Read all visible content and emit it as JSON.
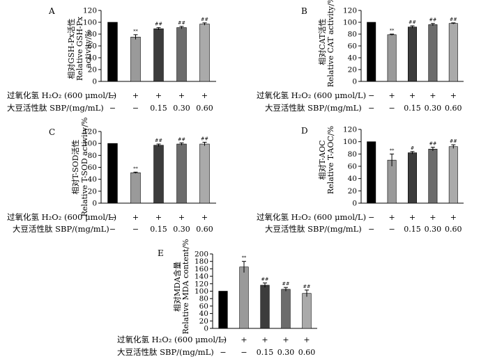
{
  "figure": {
    "row_labels": {
      "h2o2": "过氧化氢 H₂O₂ (600 μmol/L)",
      "sbp": "大豆活性肽 SBP/(mg/mL)"
    },
    "h2o2_signs": [
      "−",
      "+",
      "+",
      "+",
      "+"
    ],
    "sbp_values": [
      "−",
      "−",
      "0.15",
      "0.30",
      "0.60"
    ]
  },
  "chart_data": [
    {
      "panel": "A",
      "type": "bar",
      "ylabel_lines": [
        "相对GSH-Px活性",
        "Relative GSH-Px",
        "activity/%"
      ],
      "yticks": [
        0,
        20,
        40,
        60,
        80,
        100,
        120
      ],
      "ylim": [
        0,
        120
      ],
      "values": [
        100,
        75,
        89,
        91,
        97
      ],
      "errors": [
        0,
        4,
        2,
        2,
        2
      ],
      "significance": [
        "",
        "**",
        "##",
        "##",
        "##"
      ],
      "bar_colors": [
        "#000000",
        "#9a9a9a",
        "#3c3c3c",
        "#6c6c6c",
        "#aaaaaa"
      ]
    },
    {
      "panel": "B",
      "type": "bar",
      "ylabel_lines": [
        "相对CAT活性",
        "Relative CAT activity/%"
      ],
      "yticks": [
        0,
        20,
        40,
        60,
        80,
        100,
        120
      ],
      "ylim": [
        0,
        120
      ],
      "values": [
        100,
        79,
        92,
        96,
        98
      ],
      "errors": [
        0,
        1,
        2,
        2,
        1
      ],
      "significance": [
        "",
        "**",
        "##",
        "##",
        "##"
      ],
      "bar_colors": [
        "#000000",
        "#9a9a9a",
        "#3c3c3c",
        "#6c6c6c",
        "#aaaaaa"
      ]
    },
    {
      "panel": "C",
      "type": "bar",
      "ylabel_lines": [
        "相对T-SOD活性",
        "Relative T-SOD activity/%"
      ],
      "yticks": [
        0,
        20,
        40,
        60,
        80,
        100,
        120
      ],
      "ylim": [
        0,
        120
      ],
      "values": [
        100,
        51,
        97,
        99,
        99
      ],
      "errors": [
        0,
        1,
        2,
        2,
        3
      ],
      "significance": [
        "",
        "**",
        "##",
        "##",
        "##"
      ],
      "bar_colors": [
        "#000000",
        "#9a9a9a",
        "#3c3c3c",
        "#6c6c6c",
        "#aaaaaa"
      ]
    },
    {
      "panel": "D",
      "type": "bar",
      "ylabel_lines": [
        "相对T-AOC",
        "Relative T-AOC/%"
      ],
      "yticks": [
        0,
        20,
        40,
        60,
        80,
        100,
        120
      ],
      "ylim": [
        0,
        120
      ],
      "values": [
        100,
        70,
        82,
        88,
        92
      ],
      "errors": [
        0,
        10,
        2,
        3,
        3
      ],
      "significance": [
        "",
        "**",
        "#",
        "##",
        "##"
      ],
      "bar_colors": [
        "#000000",
        "#9a9a9a",
        "#3c3c3c",
        "#6c6c6c",
        "#aaaaaa"
      ]
    },
    {
      "panel": "E",
      "type": "bar",
      "ylabel_lines": [
        "相对MDA含量",
        "Relative MDA content/%"
      ],
      "yticks": [
        0,
        20,
        40,
        60,
        80,
        100,
        120,
        140,
        160,
        180,
        200
      ],
      "ylim": [
        0,
        200
      ],
      "values": [
        100,
        165,
        116,
        105,
        94
      ],
      "errors": [
        0,
        15,
        6,
        5,
        9
      ],
      "significance": [
        "",
        "**",
        "##",
        "##",
        "##"
      ],
      "bar_colors": [
        "#000000",
        "#9a9a9a",
        "#3c3c3c",
        "#6c6c6c",
        "#aaaaaa"
      ]
    }
  ]
}
